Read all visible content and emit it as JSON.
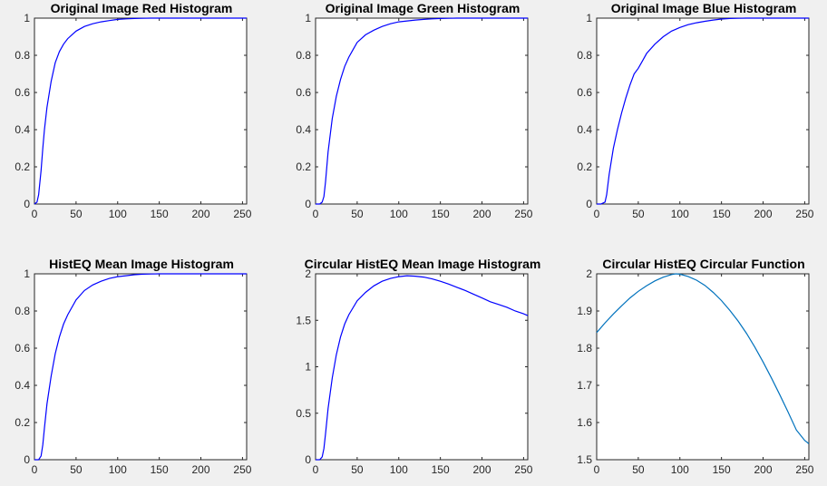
{
  "colors": {
    "figure_bg": "#f0f0f0",
    "axes_bg": "#ffffff",
    "axis": "#262626"
  },
  "chart_data": [
    {
      "type": "line",
      "title": "Original Image Red Histogram",
      "xlim": [
        0,
        255
      ],
      "ylim": [
        0,
        1
      ],
      "xticks": [
        0,
        50,
        100,
        150,
        200,
        250
      ],
      "yticks": [
        0,
        0.2,
        0.4,
        0.6,
        0.8,
        1
      ],
      "grid": false,
      "series": [
        {
          "color": "#0000ff",
          "x": [
            0,
            3,
            5,
            8,
            10,
            12,
            15,
            20,
            25,
            30,
            35,
            40,
            50,
            60,
            70,
            80,
            90,
            100,
            110,
            120,
            130,
            140,
            150,
            255
          ],
          "y": [
            0,
            0.01,
            0.05,
            0.18,
            0.3,
            0.4,
            0.52,
            0.66,
            0.76,
            0.82,
            0.86,
            0.89,
            0.93,
            0.955,
            0.97,
            0.98,
            0.987,
            0.993,
            0.996,
            0.998,
            0.999,
            1,
            1,
            1
          ]
        }
      ]
    },
    {
      "type": "line",
      "title": "Original Image Green Histogram",
      "xlim": [
        0,
        255
      ],
      "ylim": [
        0,
        1
      ],
      "xticks": [
        0,
        50,
        100,
        150,
        200,
        250
      ],
      "yticks": [
        0,
        0.2,
        0.4,
        0.6,
        0.8,
        1
      ],
      "grid": false,
      "series": [
        {
          "color": "#0000ff",
          "x": [
            0,
            5,
            8,
            10,
            12,
            15,
            20,
            25,
            30,
            35,
            40,
            45,
            50,
            60,
            70,
            80,
            90,
            100,
            110,
            120,
            130,
            140,
            150,
            160,
            170,
            255
          ],
          "y": [
            0,
            0,
            0.01,
            0.04,
            0.12,
            0.28,
            0.46,
            0.58,
            0.67,
            0.74,
            0.79,
            0.83,
            0.87,
            0.91,
            0.935,
            0.955,
            0.97,
            0.98,
            0.985,
            0.99,
            0.993,
            0.996,
            0.998,
            0.999,
            1,
            1
          ]
        }
      ]
    },
    {
      "type": "line",
      "title": "Original Image Blue Histogram",
      "xlim": [
        0,
        255
      ],
      "ylim": [
        0,
        1
      ],
      "xticks": [
        0,
        50,
        100,
        150,
        200,
        250
      ],
      "yticks": [
        0,
        0.2,
        0.4,
        0.6,
        0.8,
        1
      ],
      "grid": false,
      "series": [
        {
          "color": "#0000ff",
          "x": [
            0,
            5,
            10,
            12,
            15,
            20,
            25,
            30,
            35,
            40,
            45,
            50,
            55,
            60,
            70,
            80,
            90,
            100,
            110,
            120,
            130,
            140,
            150,
            160,
            170,
            180,
            255
          ],
          "y": [
            0,
            0,
            0.01,
            0.05,
            0.16,
            0.3,
            0.4,
            0.49,
            0.57,
            0.64,
            0.7,
            0.73,
            0.77,
            0.81,
            0.86,
            0.9,
            0.93,
            0.95,
            0.965,
            0.975,
            0.983,
            0.99,
            0.995,
            0.998,
            0.999,
            1,
            1
          ]
        }
      ]
    },
    {
      "type": "line",
      "title": "HistEQ Mean Image Histogram",
      "xlim": [
        0,
        255
      ],
      "ylim": [
        0,
        1
      ],
      "xticks": [
        0,
        50,
        100,
        150,
        200,
        250
      ],
      "yticks": [
        0,
        0.2,
        0.4,
        0.6,
        0.8,
        1
      ],
      "grid": false,
      "series": [
        {
          "color": "#0000ff",
          "x": [
            0,
            5,
            8,
            10,
            12,
            15,
            20,
            25,
            30,
            35,
            40,
            50,
            60,
            70,
            80,
            90,
            100,
            110,
            120,
            130,
            140,
            150,
            160,
            255
          ],
          "y": [
            0,
            0,
            0.02,
            0.08,
            0.17,
            0.3,
            0.45,
            0.57,
            0.66,
            0.73,
            0.78,
            0.86,
            0.91,
            0.94,
            0.96,
            0.975,
            0.985,
            0.99,
            0.995,
            0.998,
            0.999,
            1,
            1,
            1
          ]
        }
      ]
    },
    {
      "type": "line",
      "title": "Circular HistEQ Mean Image Histogram",
      "xlim": [
        0,
        255
      ],
      "ylim": [
        0,
        2
      ],
      "xticks": [
        0,
        50,
        100,
        150,
        200,
        250
      ],
      "yticks": [
        0,
        0.5,
        1,
        1.5,
        2
      ],
      "grid": false,
      "series": [
        {
          "color": "#0000ff",
          "x": [
            0,
            5,
            8,
            10,
            12,
            15,
            20,
            25,
            30,
            35,
            40,
            50,
            60,
            70,
            80,
            90,
            100,
            110,
            120,
            130,
            140,
            150,
            160,
            170,
            180,
            190,
            200,
            210,
            220,
            230,
            240,
            250,
            255
          ],
          "y": [
            0,
            0,
            0.03,
            0.12,
            0.28,
            0.55,
            0.88,
            1.13,
            1.32,
            1.46,
            1.56,
            1.71,
            1.8,
            1.87,
            1.92,
            1.95,
            1.97,
            1.98,
            1.975,
            1.965,
            1.945,
            1.92,
            1.89,
            1.855,
            1.82,
            1.78,
            1.74,
            1.7,
            1.67,
            1.64,
            1.6,
            1.57,
            1.55
          ]
        }
      ]
    },
    {
      "type": "line",
      "title": "Circular HistEQ Circular Function",
      "xlim": [
        0,
        255
      ],
      "ylim": [
        1.5,
        2
      ],
      "xticks": [
        0,
        50,
        100,
        150,
        200,
        250
      ],
      "yticks": [
        1.5,
        1.6,
        1.7,
        1.8,
        1.9,
        2
      ],
      "grid": false,
      "series": [
        {
          "color": "#0072bd",
          "x": [
            0,
            10,
            20,
            30,
            40,
            50,
            60,
            70,
            80,
            90,
            95,
            100,
            110,
            120,
            130,
            140,
            150,
            160,
            170,
            180,
            190,
            200,
            210,
            220,
            230,
            240,
            250,
            255
          ],
          "y": [
            1.842,
            1.868,
            1.892,
            1.914,
            1.935,
            1.953,
            1.968,
            1.981,
            1.991,
            1.998,
            2.0,
            1.999,
            1.993,
            1.983,
            1.969,
            1.95,
            1.928,
            1.902,
            1.873,
            1.84,
            1.803,
            1.763,
            1.72,
            1.675,
            1.628,
            1.58,
            1.552,
            1.543
          ]
        }
      ]
    }
  ]
}
